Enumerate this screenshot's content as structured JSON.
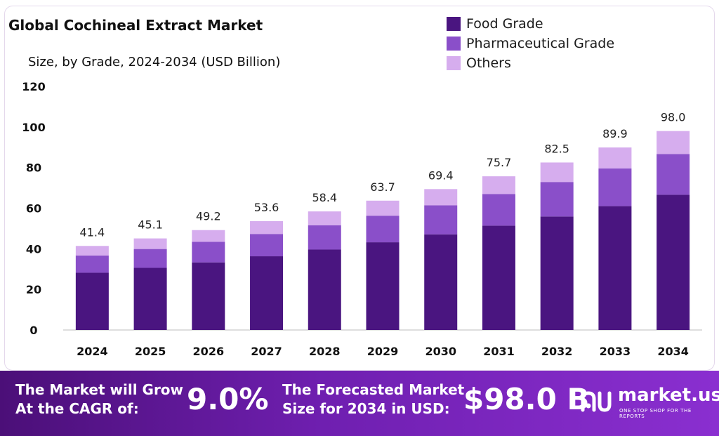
{
  "header": {
    "title": "Global Cochineal Extract Market",
    "subtitle": "Size, by Grade, 2024-2034 (USD Billion)"
  },
  "legend": [
    {
      "label": "Food Grade",
      "color": "#4a1580"
    },
    {
      "label": "Pharmaceutical Grade",
      "color": "#8a4fc9"
    },
    {
      "label": "Others",
      "color": "#d6adee"
    }
  ],
  "chart_data": {
    "type": "bar",
    "stacked": true,
    "title": "Global Cochineal Extract Market",
    "subtitle": "Size, by Grade, 2024-2034 (USD Billion)",
    "xlabel": "",
    "ylabel": "",
    "ylim": [
      0,
      120
    ],
    "yticks": [
      "0",
      "20",
      "40",
      "60",
      "80",
      "100",
      "120"
    ],
    "categories": [
      "2024",
      "2025",
      "2026",
      "2027",
      "2028",
      "2029",
      "2030",
      "2031",
      "2032",
      "2033",
      "2034"
    ],
    "series": [
      {
        "name": "Food Grade",
        "color": "#4a1580",
        "values": [
          28.2,
          30.6,
          33.3,
          36.3,
          39.6,
          43.2,
          47.1,
          51.4,
          55.9,
          61.0,
          66.6
        ]
      },
      {
        "name": "Pharmaceutical Grade",
        "color": "#8a4fc9",
        "values": [
          8.5,
          9.3,
          10.1,
          11.0,
          12.0,
          13.1,
          14.3,
          15.6,
          17.0,
          18.6,
          20.1
        ]
      },
      {
        "name": "Others",
        "color": "#d6adee",
        "values": [
          4.7,
          5.2,
          5.8,
          6.3,
          6.8,
          7.4,
          8.0,
          8.7,
          9.6,
          10.3,
          11.3
        ]
      }
    ],
    "totals": [
      "41.4",
      "45.1",
      "49.2",
      "53.6",
      "58.4",
      "63.7",
      "69.4",
      "75.7",
      "82.5",
      "89.9",
      "98.0"
    ],
    "legend_position": "top-right"
  },
  "footer": {
    "cagr_line1": "The Market will Grow",
    "cagr_line2": "At the CAGR of:",
    "cagr_value": "9.0%",
    "forecast_line1": "The Forecasted Market",
    "forecast_line2": "Size for 2034 in USD:",
    "forecast_value": "$98.0 B",
    "brand_name": "market.us",
    "brand_tagline": "ONE STOP SHOP FOR THE REPORTS"
  }
}
